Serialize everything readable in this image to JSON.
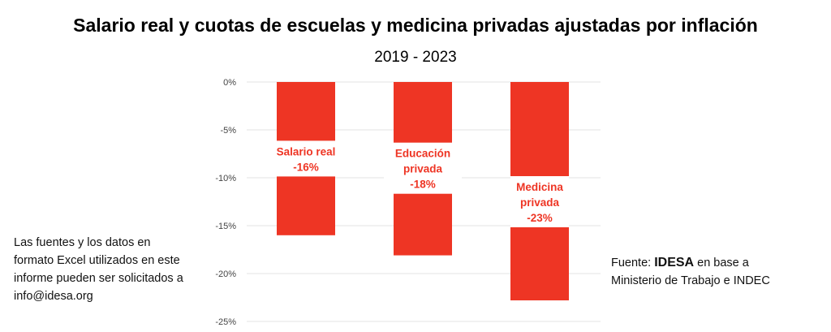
{
  "title": "Salario real y cuotas de escuelas y medicina privadas ajustadas por inflación",
  "subtitle": "2019 - 2023",
  "note": "Las fuentes y los datos en formato Excel utilizados en este informe pueden ser solicitados a info@idesa.org",
  "source": {
    "prefix": "Fuente: ",
    "brand": "IDESA",
    "suffix": " en base a Ministerio de Trabajo e INDEC"
  },
  "chart_data": {
    "type": "bar",
    "title": "Salario real y cuotas de escuelas y medicina privadas ajustadas por inflación",
    "subtitle": "2019 - 2023",
    "categories": [
      "Salario real",
      "Educación privada",
      "Medicina privada"
    ],
    "values": [
      -16.0,
      -18.1,
      -22.8
    ],
    "data_labels": [
      [
        "Salario real",
        "-16%"
      ],
      [
        "Educación",
        "privada",
        "-18%"
      ],
      [
        "Medicina",
        "privada",
        "-23%"
      ]
    ],
    "ylim": [
      -25,
      0
    ],
    "yticks": [
      "0%",
      "-5%",
      "-10%",
      "-15%",
      "-20%",
      "-25%"
    ],
    "ytick_values": [
      0,
      -5,
      -10,
      -15,
      -20,
      -25
    ],
    "grid": true,
    "bar_color": "#EE3524",
    "label_color": "#EE3524"
  }
}
